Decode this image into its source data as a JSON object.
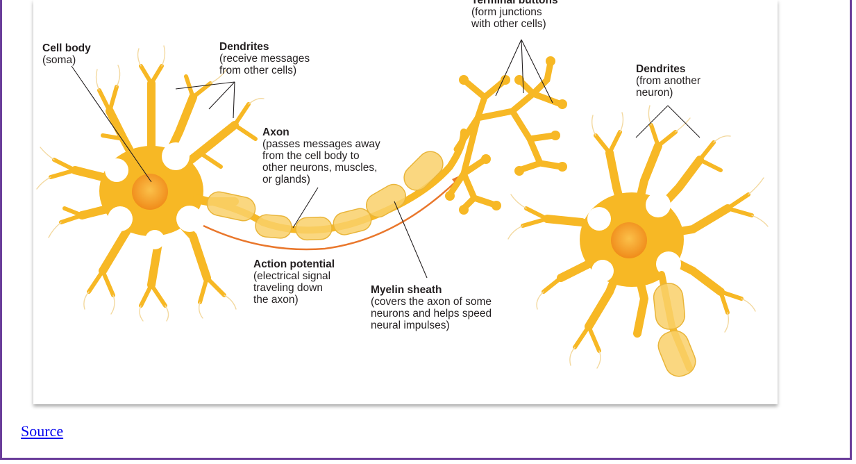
{
  "labels": {
    "terminal_buttons": {
      "title": "Terminal buttons",
      "desc": [
        "(form junctions",
        "with other cells)"
      ]
    },
    "cell_body": {
      "title": "Cell body",
      "desc": [
        "(soma)"
      ]
    },
    "dendrites_left": {
      "title": "Dendrites",
      "desc": [
        "(receive messages",
        "from other cells)"
      ]
    },
    "dendrites_right": {
      "title": "Dendrites",
      "desc": [
        "(from another",
        "neuron)"
      ]
    },
    "axon": {
      "title": "Axon",
      "desc": [
        "(passes messages away",
        "from the cell body to",
        "other neurons, muscles,",
        "or glands)"
      ]
    },
    "action_potential": {
      "title": "Action potential",
      "desc": [
        "(electrical signal",
        "traveling down",
        "the axon)"
      ]
    },
    "myelin_sheath": {
      "title": "Myelin sheath",
      "desc": [
        "(covers the axon of some",
        "neurons and helps speed",
        "neural impulses)"
      ]
    }
  },
  "source_link": "Source",
  "colors": {
    "frame": "#6a3d9a",
    "neuron": "#f7b825",
    "nucleus": "#f39c12",
    "myelin": "#f9d06a",
    "arrow": "#e9772c",
    "link": "#0000ee"
  }
}
